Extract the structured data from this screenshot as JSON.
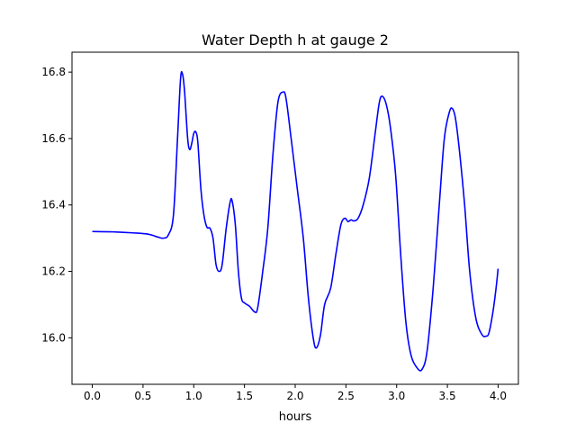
{
  "chart_data": {
    "type": "line",
    "title": "Water Depth h at gauge 2",
    "xlabel": "hours",
    "ylabel": "",
    "xlim": [
      -0.2,
      4.2
    ],
    "ylim": [
      15.86,
      16.86
    ],
    "xticks": [
      0.0,
      0.5,
      1.0,
      1.5,
      2.0,
      2.5,
      3.0,
      3.5,
      4.0
    ],
    "xtick_labels": [
      "0.0",
      "0.5",
      "1.0",
      "1.5",
      "2.0",
      "2.5",
      "3.0",
      "3.5",
      "4.0"
    ],
    "yticks": [
      16.0,
      16.2,
      16.4,
      16.6,
      16.8
    ],
    "ytick_labels": [
      "16.0",
      "16.2",
      "16.4",
      "16.6",
      "16.8"
    ],
    "grid": false,
    "series": [
      {
        "color": "#0000ff",
        "points": [
          [
            0.0,
            16.32
          ],
          [
            0.2,
            16.319
          ],
          [
            0.4,
            16.316
          ],
          [
            0.55,
            16.312
          ],
          [
            0.65,
            16.303
          ],
          [
            0.7,
            16.3
          ],
          [
            0.75,
            16.31
          ],
          [
            0.8,
            16.37
          ],
          [
            0.84,
            16.6
          ],
          [
            0.87,
            16.78
          ],
          [
            0.89,
            16.793
          ],
          [
            0.91,
            16.74
          ],
          [
            0.94,
            16.6
          ],
          [
            0.96,
            16.567
          ],
          [
            0.98,
            16.585
          ],
          [
            1.0,
            16.615
          ],
          [
            1.02,
            16.62
          ],
          [
            1.04,
            16.59
          ],
          [
            1.07,
            16.45
          ],
          [
            1.1,
            16.37
          ],
          [
            1.13,
            16.333
          ],
          [
            1.16,
            16.33
          ],
          [
            1.19,
            16.3
          ],
          [
            1.22,
            16.22
          ],
          [
            1.25,
            16.2
          ],
          [
            1.28,
            16.22
          ],
          [
            1.32,
            16.33
          ],
          [
            1.36,
            16.41
          ],
          [
            1.38,
            16.41
          ],
          [
            1.41,
            16.34
          ],
          [
            1.44,
            16.2
          ],
          [
            1.47,
            16.12
          ],
          [
            1.5,
            16.105
          ],
          [
            1.55,
            16.095
          ],
          [
            1.6,
            16.078
          ],
          [
            1.63,
            16.09
          ],
          [
            1.68,
            16.2
          ],
          [
            1.73,
            16.33
          ],
          [
            1.78,
            16.55
          ],
          [
            1.83,
            16.71
          ],
          [
            1.88,
            16.74
          ],
          [
            1.91,
            16.72
          ],
          [
            1.96,
            16.6
          ],
          [
            2.02,
            16.45
          ],
          [
            2.08,
            16.3
          ],
          [
            2.13,
            16.12
          ],
          [
            2.18,
            15.995
          ],
          [
            2.21,
            15.97
          ],
          [
            2.25,
            16.01
          ],
          [
            2.29,
            16.1
          ],
          [
            2.35,
            16.15
          ],
          [
            2.4,
            16.25
          ],
          [
            2.45,
            16.34
          ],
          [
            2.49,
            16.36
          ],
          [
            2.52,
            16.35
          ],
          [
            2.55,
            16.355
          ],
          [
            2.58,
            16.352
          ],
          [
            2.62,
            16.36
          ],
          [
            2.67,
            16.4
          ],
          [
            2.73,
            16.48
          ],
          [
            2.79,
            16.62
          ],
          [
            2.83,
            16.71
          ],
          [
            2.86,
            16.727
          ],
          [
            2.9,
            16.7
          ],
          [
            2.94,
            16.63
          ],
          [
            2.99,
            16.49
          ],
          [
            3.04,
            16.25
          ],
          [
            3.09,
            16.05
          ],
          [
            3.14,
            15.95
          ],
          [
            3.2,
            15.91
          ],
          [
            3.25,
            15.905
          ],
          [
            3.3,
            15.96
          ],
          [
            3.36,
            16.15
          ],
          [
            3.42,
            16.4
          ],
          [
            3.47,
            16.6
          ],
          [
            3.52,
            16.68
          ],
          [
            3.55,
            16.69
          ],
          [
            3.58,
            16.66
          ],
          [
            3.62,
            16.56
          ],
          [
            3.67,
            16.4
          ],
          [
            3.72,
            16.2
          ],
          [
            3.78,
            16.06
          ],
          [
            3.84,
            16.01
          ],
          [
            3.88,
            16.005
          ],
          [
            3.91,
            16.015
          ],
          [
            3.95,
            16.08
          ],
          [
            3.98,
            16.15
          ],
          [
            4.0,
            16.208
          ]
        ]
      }
    ]
  }
}
